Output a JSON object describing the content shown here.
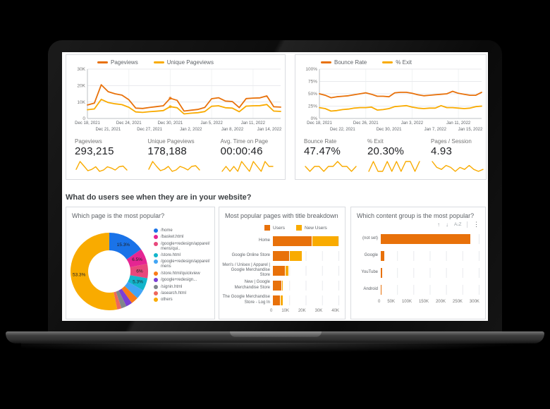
{
  "colors": {
    "orange": "#e8710a",
    "amber": "#f9ab00",
    "card_border": "#dadce0",
    "text_dark": "#202124",
    "text_muted": "#757575"
  },
  "section_title": "What do users see when they are in your website?",
  "toolbar": {
    "arrow_up": "↑",
    "arrow_down": "↓",
    "sort_az": "A↓Z",
    "more": "⋮"
  },
  "scorecards": {
    "left": [
      {
        "label": "Pageviews",
        "value": "293,215",
        "spark": [
          8,
          20,
          13,
          6,
          8,
          12,
          5,
          7,
          12,
          10,
          7,
          12,
          13,
          7
        ]
      },
      {
        "label": "Unique Pageviews",
        "value": "178,188",
        "spark": [
          8,
          19,
          12,
          6,
          8,
          12,
          5,
          7,
          12,
          10,
          7,
          12,
          13,
          7
        ]
      },
      {
        "label": "Avg. Time on Page",
        "value": "00:00:46",
        "spark": [
          5,
          6,
          5,
          6,
          5,
          7,
          6,
          5,
          7,
          6,
          5,
          7,
          6,
          6
        ]
      }
    ],
    "right": [
      {
        "label": "Bounce Rate",
        "value": "47.47%",
        "spark": [
          6,
          5,
          6,
          6,
          5,
          6,
          6,
          7,
          6,
          6,
          5,
          6
        ]
      },
      {
        "label": "% Exit",
        "value": "20.30%",
        "spark": [
          5,
          6,
          5,
          5,
          6,
          5,
          6,
          5,
          6,
          6,
          5,
          6
        ]
      },
      {
        "label": "Pages / Session",
        "value": "4.93",
        "spark": [
          9,
          6,
          5,
          7,
          6,
          4,
          6,
          5,
          7,
          5,
          4,
          5
        ]
      }
    ]
  },
  "chart_data": [
    {
      "type": "line",
      "name": "pageviews-trend",
      "title": "",
      "ylim": [
        0,
        30000
      ],
      "y_ticks": [
        {
          "v": 0,
          "label": "0"
        },
        {
          "v": 10000,
          "label": "10K"
        },
        {
          "v": 20000,
          "label": "20K"
        },
        {
          "v": 30000,
          "label": "30K"
        }
      ],
      "x_rows": [
        {
          "idx": [
            0,
            6,
            12,
            18,
            24
          ],
          "labels": [
            "Dec 18, 2021",
            "Dec 24, 2021",
            "Dec 30, 2021",
            "Jan 5, 2022",
            "Jan 11, 2022"
          ]
        },
        {
          "idx": [
            3,
            9,
            15,
            21,
            27
          ],
          "labels": [
            "Dec 21, 2021",
            "Dec 27, 2021",
            "Jan 2, 2022",
            "Jan 8, 2022",
            "Jan 14, 2022"
          ]
        }
      ],
      "dot_index": 12,
      "series": [
        {
          "name": "Pageviews",
          "color": "#e8710a",
          "values": [
            8200,
            9300,
            20500,
            16300,
            15000,
            14200,
            11400,
            6300,
            6100,
            6700,
            7200,
            7700,
            12300,
            11000,
            4500,
            5000,
            5500,
            6700,
            12000,
            12600,
            10600,
            10300,
            6600,
            12100,
            12400,
            12500,
            13700,
            7100,
            6900
          ]
        },
        {
          "name": "Unique Pageviews",
          "color": "#f9ab00",
          "values": [
            5300,
            5800,
            11600,
            9700,
            8900,
            8400,
            6800,
            4000,
            3700,
            4100,
            4400,
            4800,
            7200,
            6500,
            2800,
            3200,
            3500,
            4200,
            7400,
            7700,
            6500,
            6300,
            4100,
            7500,
            7700,
            7800,
            8500,
            4500,
            4300
          ]
        }
      ]
    },
    {
      "type": "line",
      "name": "bounce-exit-trend",
      "title": "",
      "ylim": [
        0,
        100
      ],
      "y_ticks": [
        {
          "v": 0,
          "label": "0%"
        },
        {
          "v": 25,
          "label": "25%"
        },
        {
          "v": 50,
          "label": "50%"
        },
        {
          "v": 75,
          "label": "75%"
        },
        {
          "v": 100,
          "label": "100%"
        }
      ],
      "x_rows": [
        {
          "idx": [
            0,
            8,
            16,
            24
          ],
          "labels": [
            "Dec 18, 2021",
            "Dec 26, 2021",
            "Jan 3, 2022",
            "Jan 11, 2022"
          ]
        },
        {
          "idx": [
            4,
            12,
            20,
            28
          ],
          "labels": [
            "Dec 22, 2021",
            "Dec 30, 2021",
            "Jan 7, 2022",
            "Jan 15, 2022"
          ]
        }
      ],
      "dot_index": null,
      "series": [
        {
          "name": "Bounce Rate",
          "color": "#e8710a",
          "values": [
            50,
            47,
            42,
            44,
            45,
            46,
            48,
            50,
            52,
            49,
            45,
            45,
            44,
            52,
            53,
            53,
            51,
            48,
            46,
            47,
            48,
            49,
            50,
            55,
            51,
            49,
            47,
            47,
            53
          ]
        },
        {
          "name": "% Exit",
          "color": "#f9ab00",
          "values": [
            22,
            20,
            15,
            16,
            18,
            19,
            21,
            22,
            22,
            23,
            17,
            18,
            20,
            24,
            25,
            26,
            23,
            21,
            20,
            21,
            21,
            26,
            22,
            22,
            21,
            20,
            21,
            24,
            25
          ]
        }
      ]
    },
    {
      "type": "pie",
      "title": "Which page is the most popular?",
      "donut": true,
      "slices": [
        {
          "label": "/home",
          "pct": 15.3,
          "pct_label": "15.3%",
          "color": "#1a73e8"
        },
        {
          "label": "/basket.html",
          "pct": 6.5,
          "pct_label": "6.5%",
          "color": "#e52592"
        },
        {
          "label": "/google+redesign/apparel/mens/qui..",
          "pct": 6.0,
          "pct_label": "6%",
          "color": "#e8487c"
        },
        {
          "label": "/store.html",
          "pct": 5.3,
          "pct_label": "5.3%",
          "color": "#12b5cb"
        },
        {
          "label": "/google+redesign/apparel/mens",
          "pct": 4.0,
          "pct_label": null,
          "color": "#42a5f5"
        },
        {
          "label": "/store.html/quickview",
          "pct": 3.0,
          "pct_label": null,
          "color": "#fa7b17"
        },
        {
          "label": "/google+redesign...",
          "pct": 2.6,
          "pct_label": null,
          "color": "#7c3fd4"
        },
        {
          "label": "/signin.html",
          "pct": 2.2,
          "pct_label": null,
          "color": "#80868b"
        },
        {
          "label": "/asearch.html",
          "pct": 1.8,
          "pct_label": null,
          "color": "#ee675c"
        },
        {
          "label": "others",
          "pct": 53.3,
          "pct_label": "53.3%",
          "color": "#f9ab00"
        }
      ]
    },
    {
      "type": "bar",
      "orientation": "horizontal",
      "stacked": true,
      "title": "Most popular pages with title breakdown",
      "xlim": [
        0,
        40000
      ],
      "x_ticks": [
        "0",
        "10K",
        "20K",
        "30K",
        "40K"
      ],
      "categories": [
        "Home",
        "Google Online Store",
        "Men's / Unisex | Apparel | Google Merchandise Store",
        "New | Google Merchandise Store",
        "The Google Merchandise Store - Log In"
      ],
      "series": [
        {
          "name": "Users",
          "color": "#e8710a",
          "values": [
            23500,
            10000,
            7500,
            5000,
            4300
          ]
        },
        {
          "name": "New Users",
          "color": "#f9ab00",
          "values": [
            16000,
            7000,
            1700,
            600,
            1100
          ]
        }
      ]
    },
    {
      "type": "bar",
      "orientation": "horizontal",
      "stacked": false,
      "title": "Which content group is the most popular?",
      "xlim": [
        0,
        300000
      ],
      "x_ticks": [
        "0",
        "50K",
        "100K",
        "150K",
        "200K",
        "250K",
        "300K"
      ],
      "categories": [
        "(not set)",
        "Google",
        "YouTube",
        "Android"
      ],
      "series": [
        {
          "name": "",
          "color": "#e8710a",
          "values": [
            275000,
            10000,
            4000,
            1500
          ]
        }
      ]
    }
  ]
}
